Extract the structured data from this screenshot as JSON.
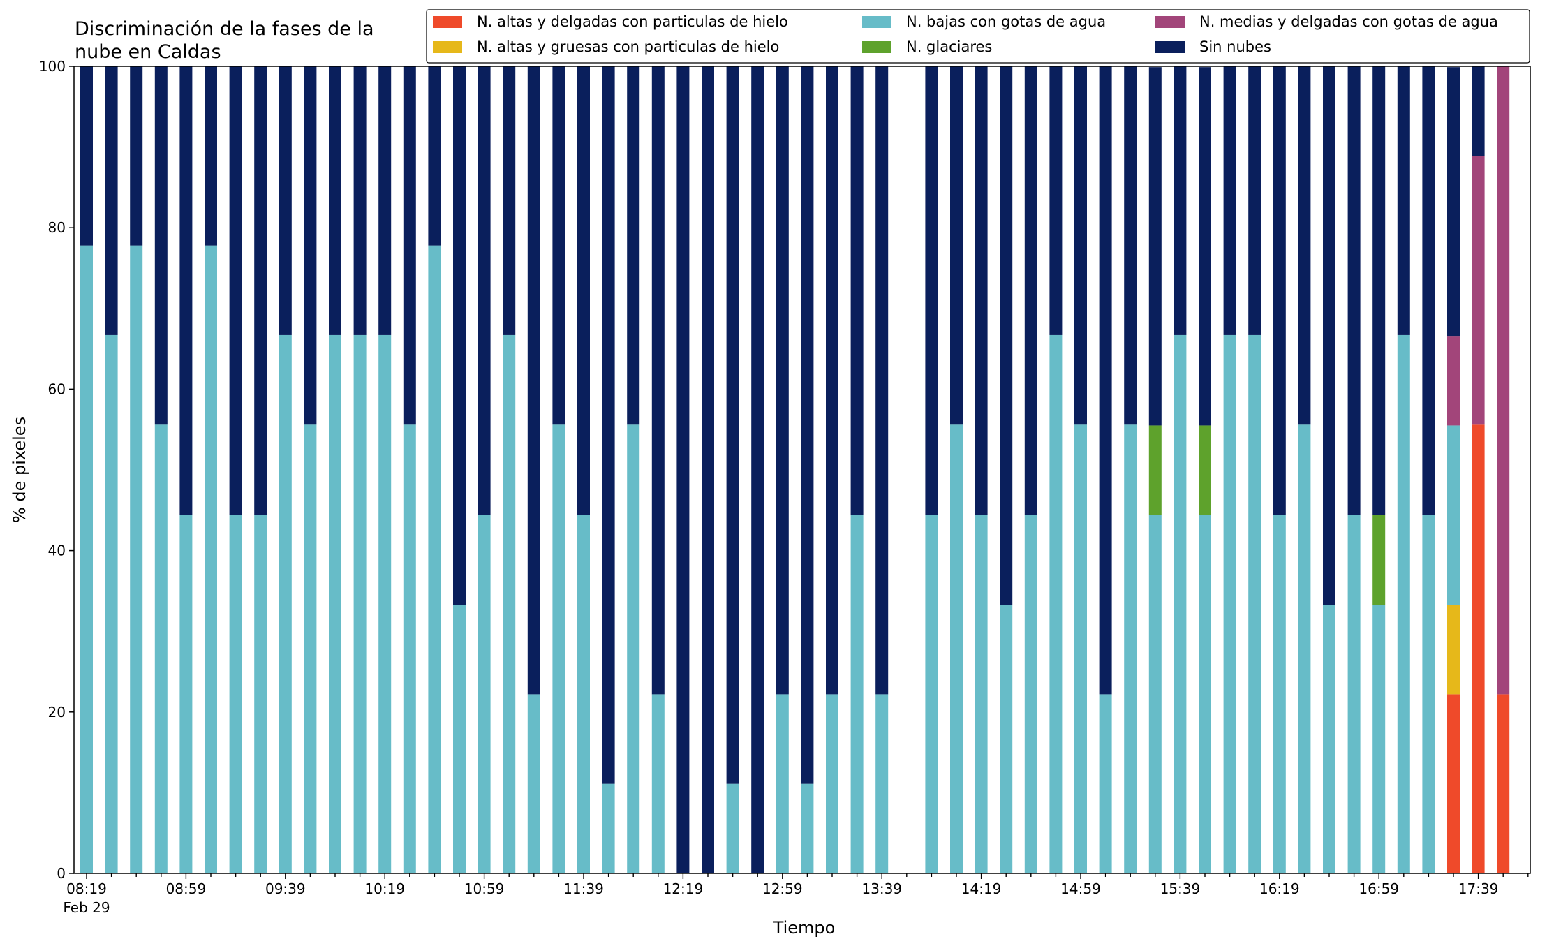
{
  "chart_data": {
    "type": "bar",
    "stacked": true,
    "title_lines": [
      "Discriminación de la fases de la",
      "nube en Caldas"
    ],
    "xlabel": "Tiempo",
    "ylabel": "% de pixeles",
    "ylim": [
      0,
      100
    ],
    "yticks": [
      0,
      20,
      40,
      60,
      80,
      100
    ],
    "x_start": "08:19",
    "x_interval_minutes": 10,
    "x_count": 59,
    "xtick_labels": [
      "08:19",
      "08:59",
      "09:39",
      "10:19",
      "10:59",
      "11:39",
      "12:19",
      "12:59",
      "13:39",
      "14:19",
      "14:59",
      "15:39",
      "16:19",
      "16:59",
      "17:39"
    ],
    "xtick_sublabel": "Feb 29",
    "grid": false,
    "legend_position": "top-right",
    "legend_columns": 3,
    "legend_order": [
      0,
      1,
      2,
      3,
      4,
      5
    ],
    "series": [
      {
        "name": "N. altas y delgadas con particulas de hielo",
        "color": "#EF4A2A",
        "values": [
          0,
          0,
          0,
          0,
          0,
          0,
          0,
          0,
          0,
          0,
          0,
          0,
          0,
          0,
          0,
          0,
          0,
          0,
          0,
          0,
          0,
          0,
          0,
          0,
          0,
          0,
          0,
          0,
          0,
          0,
          0,
          0,
          0,
          0,
          0,
          0,
          0,
          0,
          0,
          0,
          0,
          0,
          0,
          0,
          0,
          0,
          0,
          0,
          0,
          0,
          0,
          0,
          0,
          0,
          0,
          22.2,
          55.6,
          22.2,
          null
        ]
      },
      {
        "name": "N. altas y gruesas con particulas de hielo",
        "color": "#E6B81A",
        "values": [
          0,
          0,
          0,
          0,
          0,
          0,
          0,
          0,
          0,
          0,
          0,
          0,
          0,
          0,
          0,
          0,
          0,
          0,
          0,
          0,
          0,
          0,
          0,
          0,
          0,
          0,
          0,
          0,
          0,
          0,
          0,
          0,
          0,
          0,
          0,
          0,
          0,
          0,
          0,
          0,
          0,
          0,
          0,
          0,
          0,
          0,
          0,
          0,
          0,
          0,
          0,
          0,
          0,
          0,
          0,
          11.1,
          0,
          0,
          null
        ]
      },
      {
        "name": "N. bajas con gotas de agua",
        "color": "#67BCC8",
        "values": [
          77.8,
          66.7,
          77.8,
          55.6,
          44.4,
          77.8,
          44.4,
          44.4,
          66.7,
          55.6,
          66.7,
          66.7,
          66.7,
          55.6,
          77.8,
          33.3,
          44.4,
          66.7,
          22.2,
          55.6,
          44.4,
          11.1,
          55.6,
          22.2,
          0,
          0,
          11.1,
          0,
          22.2,
          11.1,
          22.2,
          44.4,
          22.2,
          null,
          44.4,
          55.6,
          44.4,
          33.3,
          44.4,
          66.7,
          55.6,
          22.2,
          55.6,
          44.4,
          66.7,
          44.4,
          66.7,
          66.7,
          44.4,
          55.6,
          33.3,
          44.4,
          33.3,
          66.7,
          44.4,
          22.2,
          0,
          0,
          null
        ]
      },
      {
        "name": "N. glaciares",
        "color": "#5EA22C",
        "values": [
          0,
          0,
          0,
          0,
          0,
          0,
          0,
          0,
          0,
          0,
          0,
          0,
          0,
          0,
          0,
          0,
          0,
          0,
          0,
          0,
          0,
          0,
          0,
          0,
          0,
          0,
          0,
          0,
          0,
          0,
          0,
          0,
          0,
          null,
          0,
          0,
          0,
          0,
          0,
          0,
          0,
          0,
          0,
          11.1,
          0,
          11.1,
          0,
          0,
          0,
          0,
          0,
          0,
          11.1,
          0,
          0,
          0,
          0,
          0,
          null
        ]
      },
      {
        "name": "N. medias y delgadas con gotas de agua",
        "color": "#A2457A",
        "values": [
          0,
          0,
          0,
          0,
          0,
          0,
          0,
          0,
          0,
          0,
          0,
          0,
          0,
          0,
          0,
          0,
          0,
          0,
          0,
          0,
          0,
          0,
          0,
          0,
          0,
          0,
          0,
          0,
          0,
          0,
          0,
          0,
          0,
          null,
          0,
          0,
          0,
          0,
          0,
          0,
          0,
          0,
          0,
          0,
          0,
          0,
          0,
          0,
          0,
          0,
          0,
          0,
          0,
          0,
          0,
          11.1,
          33.3,
          77.8,
          null
        ]
      },
      {
        "name": "Sin nubes",
        "color": "#0A1F5C",
        "values": [
          22.2,
          33.3,
          22.2,
          44.4,
          55.6,
          22.2,
          55.6,
          55.6,
          33.3,
          44.4,
          33.3,
          33.3,
          33.3,
          44.4,
          22.2,
          66.7,
          55.6,
          33.3,
          77.8,
          44.4,
          55.6,
          88.9,
          44.4,
          77.8,
          100,
          100,
          88.9,
          100,
          77.8,
          88.9,
          77.8,
          55.6,
          77.8,
          null,
          55.6,
          44.4,
          55.6,
          66.7,
          55.6,
          33.3,
          44.4,
          77.8,
          44.4,
          44.4,
          33.3,
          44.4,
          33.3,
          33.3,
          55.6,
          44.4,
          66.7,
          55.6,
          55.6,
          33.3,
          55.6,
          33.3,
          11.1,
          0,
          null
        ]
      }
    ]
  }
}
